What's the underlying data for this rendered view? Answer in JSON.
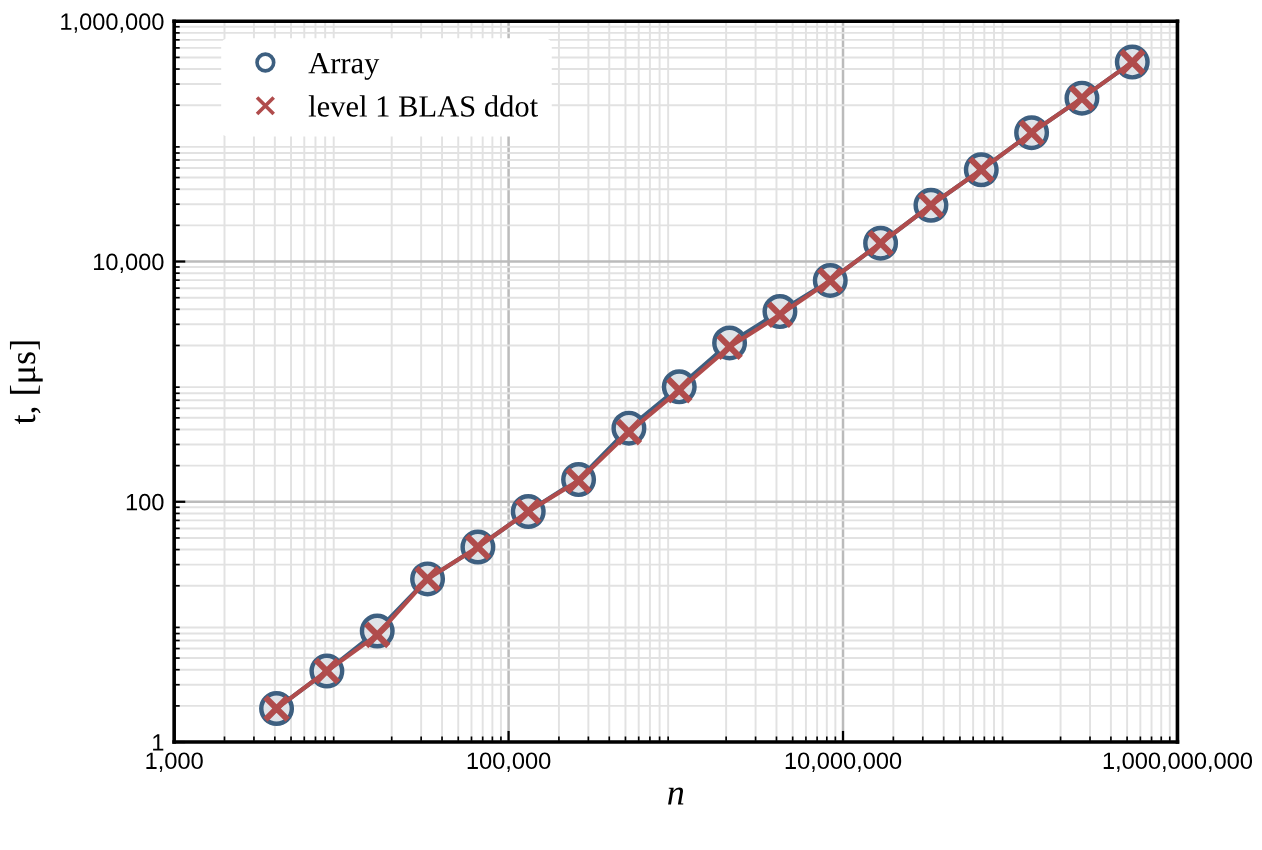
{
  "chart_data": {
    "type": "line",
    "x": [
      4096,
      8192,
      16384,
      32768,
      65536,
      131072,
      262144,
      524288,
      1048576,
      2097152,
      4194304,
      8388608,
      16777216,
      33554432,
      67108864,
      134217728,
      268435456,
      536870912
    ],
    "series": [
      {
        "name": "Array",
        "color": "#3d5f80",
        "marker": "circle",
        "values": [
          1.9,
          3.9,
          8.4,
          22.8,
          42,
          83,
          153,
          410,
          905,
          2100,
          3830,
          6950,
          14200,
          29400,
          58000,
          118000,
          229000,
          457000
        ]
      },
      {
        "name": "level 1 BLAS ddot",
        "color": "#b04c4c",
        "marker": "cross",
        "values": [
          1.9,
          3.9,
          7.8,
          22.8,
          42,
          83,
          150,
          380,
          850,
          1950,
          3600,
          6950,
          14200,
          29400,
          58000,
          118000,
          229000,
          457000
        ]
      }
    ],
    "xlabel": "n",
    "ylabel": "t, [μs]",
    "log": "xy",
    "xlim": [
      1000,
      1000000000
    ],
    "ylim": [
      1,
      1000000
    ],
    "xticks": [
      {
        "value": 1000,
        "label": "1,000"
      },
      {
        "value": 100000,
        "label": "100,000"
      },
      {
        "value": 10000000,
        "label": "10,000,000"
      },
      {
        "value": 1000000000,
        "label": "1,000,000,000"
      }
    ],
    "yticks": [
      {
        "value": 1,
        "label": "1"
      },
      {
        "value": 100,
        "label": "100"
      },
      {
        "value": 10000,
        "label": "10,000"
      },
      {
        "value": 1000000,
        "label": "1,000,000"
      }
    ],
    "grid": true,
    "legend": "top left",
    "line_style": "solid"
  }
}
